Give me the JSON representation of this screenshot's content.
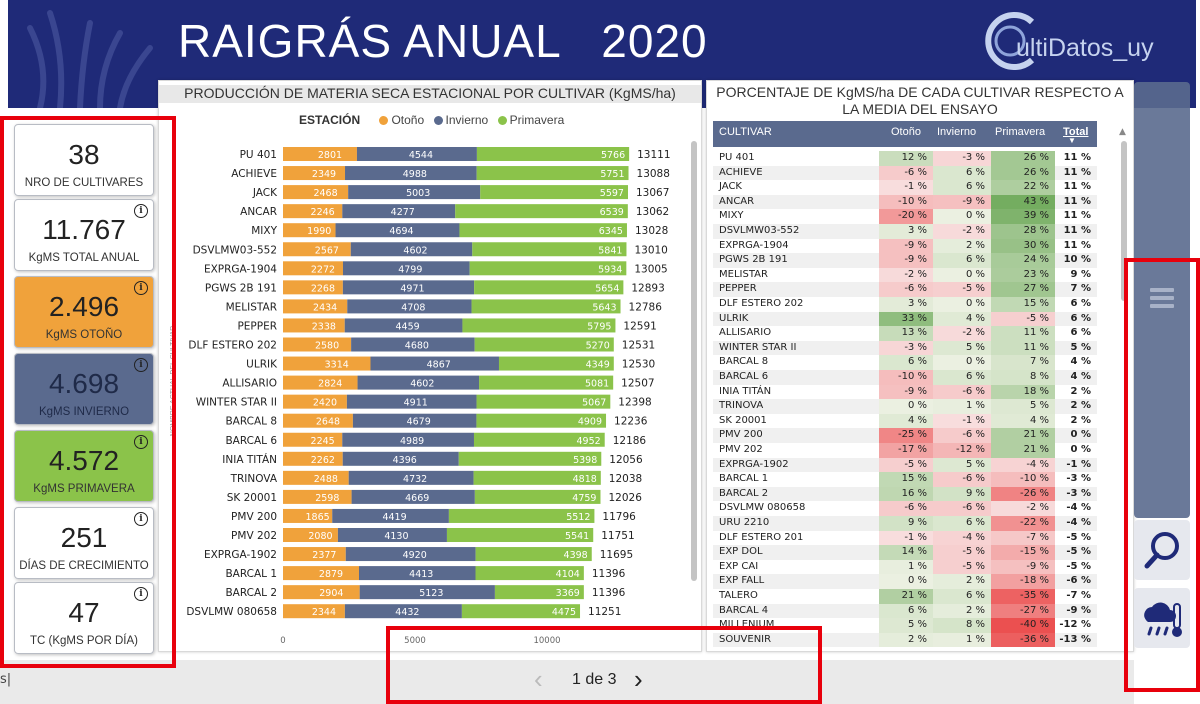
{
  "header": {
    "title": "RAIGRÁS ANUAL   2020",
    "logo_text": "ultiDatos_uy"
  },
  "kpis": [
    {
      "value": "38",
      "label": "NRO DE CULTIVARES",
      "info": false,
      "style": "white"
    },
    {
      "value": "11.767",
      "label": "KgMS TOTAL ANUAL",
      "info": true,
      "style": "white"
    },
    {
      "value": "2.496",
      "label": "KgMS OTOÑO",
      "info": true,
      "style": "orange"
    },
    {
      "value": "4.698",
      "label": "KgMS INVIERNO",
      "info": true,
      "style": "blue"
    },
    {
      "value": "4.572",
      "label": "KgMS PRIMAVERA",
      "info": true,
      "style": "green"
    },
    {
      "value": "251",
      "label": "DÍAS DE CRECIMIENTO",
      "info": true,
      "style": "white"
    },
    {
      "value": "47",
      "label": "TC (KgMS POR DÍA)",
      "info": true,
      "style": "white"
    }
  ],
  "info_symbol": "i",
  "chart_panel": {
    "title": "PRODUCCIÓN DE MATERIA SECA ESTACIONAL POR CULTIVAR (KgMS/ha)",
    "legend_title": "ESTACIÓN",
    "legend": [
      "Otoño",
      "Invierno",
      "Primavera"
    ],
    "y_axis_label": "NOMBRE ACTUAL DEL CULTIVAR"
  },
  "chart_data": {
    "type": "bar",
    "orientation": "horizontal-stacked",
    "title": "PRODUCCIÓN DE MATERIA SECA ESTACIONAL POR CULTIVAR (KgMS/ha)",
    "categories": [
      "PU 401",
      "ACHIEVE",
      "JACK",
      "ANCAR",
      "MIXY",
      "DSVLMW03-552",
      "EXPRGA-1904",
      "PGWS 2B 191",
      "MELISTAR",
      "PEPPER",
      "DLF ESTERO 202",
      "ULRIK",
      "ALLISARIO",
      "WINTER STAR II",
      "BARCAL 8",
      "BARCAL 6",
      "INIA TITÁN",
      "TRINOVA",
      "SK 20001",
      "PMV 200",
      "PMV 202",
      "EXPRGA-1902",
      "BARCAL 1",
      "BARCAL 2",
      "DSVLMW 080658"
    ],
    "series": [
      {
        "name": "Otoño",
        "color": "#f0a23b",
        "values": [
          2801,
          2349,
          2468,
          2246,
          1990,
          2567,
          2272,
          2268,
          2434,
          2338,
          2580,
          3314,
          2824,
          2420,
          2648,
          2245,
          2262,
          2488,
          2598,
          1865,
          2080,
          2377,
          2879,
          2904,
          2344
        ]
      },
      {
        "name": "Invierno",
        "color": "#5a6a8e",
        "values": [
          4544,
          4988,
          5003,
          4277,
          4694,
          4602,
          4799,
          4971,
          4708,
          4459,
          4680,
          4867,
          4602,
          4911,
          4679,
          4989,
          4396,
          4732,
          4669,
          4419,
          4130,
          4920,
          4413,
          5123,
          4432
        ]
      },
      {
        "name": "Primavera",
        "color": "#8bc34a",
        "values": [
          5766,
          5751,
          5597,
          6539,
          6345,
          5841,
          5934,
          5654,
          5643,
          5795,
          5270,
          4349,
          5081,
          5067,
          4909,
          4952,
          5398,
          4818,
          4759,
          5512,
          5541,
          4398,
          4104,
          3369,
          4475
        ]
      }
    ],
    "totals": [
      13111,
      13088,
      13067,
      13062,
      13028,
      13010,
      13005,
      12893,
      12786,
      12591,
      12531,
      12530,
      12507,
      12398,
      12236,
      12186,
      12056,
      12038,
      12026,
      11796,
      11751,
      11695,
      11396,
      11396,
      11251
    ],
    "x_ticks": [
      "0",
      "5000",
      "10000"
    ],
    "xlim": [
      0,
      15500
    ]
  },
  "table_panel": {
    "title_line1": "PORCENTAJE DE KgMS/ha DE CADA CULTIVAR RESPECTO A",
    "title_line2": "LA MEDIA DEL ENSAYO",
    "columns": [
      "CULTIVAR",
      "Otoño",
      "Invierno",
      "Primavera",
      "Total"
    ],
    "rows": [
      [
        "PU 401",
        12,
        -3,
        26,
        11
      ],
      [
        "ACHIEVE",
        -6,
        6,
        26,
        11
      ],
      [
        "JACK",
        -1,
        6,
        22,
        11
      ],
      [
        "ANCAR",
        -10,
        -9,
        43,
        11
      ],
      [
        "MIXY",
        -20,
        0,
        39,
        11
      ],
      [
        "DSVLMW03-552",
        3,
        -2,
        28,
        11
      ],
      [
        "EXPRGA-1904",
        -9,
        2,
        30,
        11
      ],
      [
        "PGWS 2B 191",
        -9,
        6,
        24,
        10
      ],
      [
        "MELISTAR",
        -2,
        0,
        23,
        9
      ],
      [
        "PEPPER",
        -6,
        -5,
        27,
        7
      ],
      [
        "DLF ESTERO 202",
        3,
        0,
        15,
        6
      ],
      [
        "ULRIK",
        33,
        4,
        -5,
        6
      ],
      [
        "ALLISARIO",
        13,
        -2,
        11,
        6
      ],
      [
        "WINTER STAR II",
        -3,
        5,
        11,
        5
      ],
      [
        "BARCAL 8",
        6,
        0,
        7,
        4
      ],
      [
        "BARCAL 6",
        -10,
        6,
        8,
        4
      ],
      [
        "INIA TITÁN",
        -9,
        -6,
        18,
        2
      ],
      [
        "TRINOVA",
        0,
        1,
        5,
        2
      ],
      [
        "SK 20001",
        4,
        -1,
        4,
        2
      ],
      [
        "PMV 200",
        -25,
        -6,
        21,
        0
      ],
      [
        "PMV 202",
        -17,
        -12,
        21,
        0
      ],
      [
        "EXPRGA-1902",
        -5,
        5,
        -4,
        -1
      ],
      [
        "BARCAL 1",
        15,
        -6,
        -10,
        -3
      ],
      [
        "BARCAL 2",
        16,
        9,
        -26,
        -3
      ],
      [
        "DSVLMW 080658",
        -6,
        -6,
        -2,
        -4
      ],
      [
        "URU 2210",
        9,
        6,
        -22,
        -4
      ],
      [
        "DLF ESTERO 201",
        -1,
        -4,
        -7,
        -5
      ],
      [
        "EXP DOL",
        14,
        -5,
        -15,
        -5
      ],
      [
        "EXP CAI",
        1,
        -5,
        -9,
        -5
      ],
      [
        "EXP FALL",
        0,
        2,
        -18,
        -6
      ],
      [
        "TALERO",
        21,
        6,
        -35,
        -7
      ],
      [
        "BARCAL 4",
        6,
        2,
        -27,
        -9
      ],
      [
        "MILLENIUM",
        5,
        8,
        -40,
        -12
      ],
      [
        "SOUVENIR",
        2,
        1,
        -36,
        -13
      ]
    ]
  },
  "pager": {
    "text": "1 de 3",
    "prev": "‹",
    "next": "›"
  },
  "status_left": "s|"
}
